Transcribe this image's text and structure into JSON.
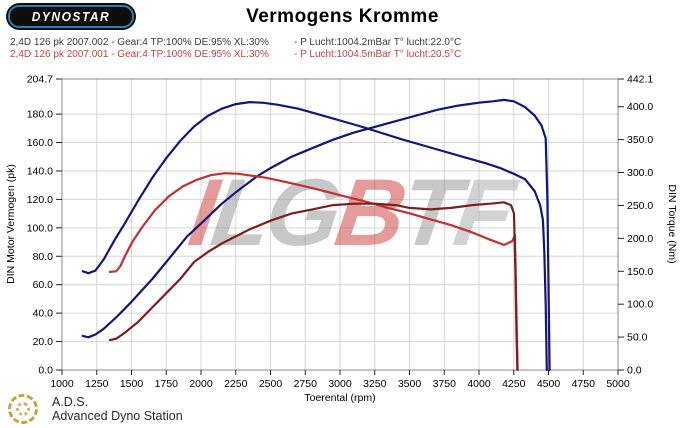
{
  "logo": {
    "text": "DYNOSTAR"
  },
  "title": "Vermogens Kromme",
  "runs": [
    {
      "main": "2,4D 126 pk 2007.002 - Gear:4 TP:100% DE:95% XL:30%",
      "env": "- P Lucht:1004.2mBar T° lucht:22.0°C",
      "color": "#3a3a44"
    },
    {
      "main": "2,4D 126 pk 2007.001 - Gear:4 TP:100% DE:95% XL:30%",
      "env": "- P Lucht:1004.5mBar T° lucht:20.5°C",
      "color": "#bf4543"
    }
  ],
  "watermark": {
    "parts": [
      {
        "text": "I",
        "color": "#d04040"
      },
      {
        "text": "L",
        "color": "#969696"
      },
      {
        "text": "G",
        "color": "#969696"
      },
      {
        "text": "B",
        "color": "#d04040"
      },
      {
        "text": "T",
        "color": "#969696"
      },
      {
        "text": "F",
        "color": "#ababab"
      }
    ]
  },
  "footer": {
    "abbr": "A.D.S.",
    "name": "Advanced Dyno Station"
  },
  "chart_data": {
    "type": "line",
    "title": "Vermogens Kromme",
    "xlabel": "Toerental (rpm)",
    "ylabel_left": "DIN Motor Vermogen (pk)",
    "ylabel_right": "DIN Torque (Nm)",
    "x_range": [
      1000,
      5000
    ],
    "y_left_range": [
      0,
      204.7
    ],
    "y_right_range": [
      0,
      442.1
    ],
    "grid": true,
    "legend": "none",
    "colors": {
      "run_002": "#14147e",
      "run_001_torque": "#c23030",
      "run_001_power": "#7d1f1f",
      "grid": "#d6d6d6",
      "frame": "#8a8a8a",
      "tick": "#222222"
    },
    "x_ticks": [
      [
        1000,
        "1000"
      ],
      [
        1250,
        "1250"
      ],
      [
        1500,
        "1500"
      ],
      [
        1750,
        "1750"
      ],
      [
        2000,
        "2000"
      ],
      [
        2250,
        "2250"
      ],
      [
        2500,
        "2500"
      ],
      [
        2750,
        "2750"
      ],
      [
        3000,
        "3000"
      ],
      [
        3250,
        "3250"
      ],
      [
        3500,
        "3500"
      ],
      [
        3750,
        "3750"
      ],
      [
        4000,
        "4000"
      ],
      [
        4250,
        "4250"
      ],
      [
        4500,
        "4500"
      ],
      [
        4750,
        "4750"
      ],
      [
        5000,
        "5000"
      ]
    ],
    "y_left_ticks": [
      [
        0,
        "0.0"
      ],
      [
        20,
        "20.0"
      ],
      [
        40,
        "40.0"
      ],
      [
        60,
        "60.0"
      ],
      [
        80,
        "80.0"
      ],
      [
        100,
        "100.0"
      ],
      [
        120,
        "120.0"
      ],
      [
        140,
        "140.0"
      ],
      [
        160,
        "160.0"
      ],
      [
        180,
        "180.0"
      ],
      [
        204.7,
        "204.7"
      ]
    ],
    "y_right_ticks": [
      [
        0,
        "0.0"
      ],
      [
        50,
        "50.0"
      ],
      [
        100,
        "100.0"
      ],
      [
        150,
        "150.0"
      ],
      [
        200,
        "200.0"
      ],
      [
        250,
        "250.0"
      ],
      [
        300,
        "300.0"
      ],
      [
        350,
        "350.0"
      ],
      [
        400,
        "400.0"
      ],
      [
        442.1,
        "442.1"
      ]
    ],
    "series": [
      {
        "name": "torque_run_2007_002",
        "axis": "right",
        "color": "#14147e",
        "unit": "Nm",
        "points": [
          [
            1150,
            150
          ],
          [
            1190,
            147
          ],
          [
            1240,
            151
          ],
          [
            1300,
            168
          ],
          [
            1380,
            198
          ],
          [
            1450,
            222
          ],
          [
            1550,
            258
          ],
          [
            1650,
            292
          ],
          [
            1750,
            322
          ],
          [
            1850,
            348
          ],
          [
            1950,
            370
          ],
          [
            2050,
            386
          ],
          [
            2150,
            397
          ],
          [
            2250,
            404
          ],
          [
            2350,
            407
          ],
          [
            2450,
            406
          ],
          [
            2550,
            403
          ],
          [
            2700,
            397
          ],
          [
            2850,
            388
          ],
          [
            3000,
            379
          ],
          [
            3150,
            370
          ],
          [
            3300,
            360
          ],
          [
            3450,
            350
          ],
          [
            3600,
            341
          ],
          [
            3750,
            332
          ],
          [
            3900,
            323
          ],
          [
            4050,
            314
          ],
          [
            4150,
            307
          ],
          [
            4250,
            298
          ],
          [
            4330,
            290
          ],
          [
            4400,
            272
          ],
          [
            4440,
            250
          ],
          [
            4460,
            228
          ],
          [
            4470,
            180
          ],
          [
            4480,
            100
          ],
          [
            4488,
            0
          ]
        ]
      },
      {
        "name": "power_run_2007_002",
        "axis": "left",
        "color": "#14147e",
        "unit": "pk",
        "points": [
          [
            1150,
            24
          ],
          [
            1190,
            23
          ],
          [
            1240,
            25
          ],
          [
            1300,
            29
          ],
          [
            1400,
            38
          ],
          [
            1500,
            48
          ],
          [
            1650,
            64
          ],
          [
            1750,
            76
          ],
          [
            1900,
            94
          ],
          [
            2000,
            103
          ],
          [
            2150,
            117
          ],
          [
            2250,
            125
          ],
          [
            2400,
            136
          ],
          [
            2500,
            142
          ],
          [
            2650,
            150
          ],
          [
            2800,
            156
          ],
          [
            2950,
            162
          ],
          [
            3100,
            167
          ],
          [
            3250,
            171
          ],
          [
            3400,
            175
          ],
          [
            3550,
            179
          ],
          [
            3700,
            183
          ],
          [
            3850,
            186
          ],
          [
            4000,
            188
          ],
          [
            4100,
            189
          ],
          [
            4180,
            190
          ],
          [
            4250,
            189
          ],
          [
            4330,
            185
          ],
          [
            4400,
            179
          ],
          [
            4450,
            172
          ],
          [
            4480,
            163
          ],
          [
            4492,
            120
          ],
          [
            4500,
            60
          ],
          [
            4508,
            0
          ]
        ]
      },
      {
        "name": "torque_run_2007_001",
        "axis": "right",
        "color": "#c23030",
        "unit": "Nm",
        "points": [
          [
            1345,
            149
          ],
          [
            1390,
            150
          ],
          [
            1420,
            158
          ],
          [
            1460,
            176
          ],
          [
            1510,
            196
          ],
          [
            1580,
            218
          ],
          [
            1670,
            243
          ],
          [
            1770,
            264
          ],
          [
            1870,
            279
          ],
          [
            1970,
            289
          ],
          [
            2070,
            296
          ],
          [
            2170,
            299
          ],
          [
            2270,
            298
          ],
          [
            2370,
            295
          ],
          [
            2470,
            292
          ],
          [
            2600,
            286
          ],
          [
            2750,
            279
          ],
          [
            2900,
            271
          ],
          [
            3050,
            263
          ],
          [
            3200,
            255
          ],
          [
            3350,
            246
          ],
          [
            3500,
            238
          ],
          [
            3650,
            229
          ],
          [
            3800,
            220
          ],
          [
            3950,
            209
          ],
          [
            4080,
            198
          ],
          [
            4180,
            190
          ],
          [
            4240,
            196
          ],
          [
            4258,
            205
          ],
          [
            4266,
            120
          ],
          [
            4272,
            60
          ],
          [
            4278,
            0
          ]
        ]
      },
      {
        "name": "power_run_2007_001",
        "axis": "left",
        "color": "#7d1f1f",
        "unit": "pk",
        "points": [
          [
            1345,
            21
          ],
          [
            1390,
            22
          ],
          [
            1450,
            26
          ],
          [
            1550,
            34
          ],
          [
            1650,
            44
          ],
          [
            1750,
            54
          ],
          [
            1850,
            64
          ],
          [
            1950,
            76
          ],
          [
            2050,
            83
          ],
          [
            2150,
            89
          ],
          [
            2250,
            94
          ],
          [
            2350,
            99
          ],
          [
            2500,
            105
          ],
          [
            2650,
            110
          ],
          [
            2800,
            113
          ],
          [
            2950,
            116
          ],
          [
            3100,
            117
          ],
          [
            3250,
            117
          ],
          [
            3400,
            116
          ],
          [
            3500,
            114
          ],
          [
            3650,
            113
          ],
          [
            3800,
            114
          ],
          [
            3950,
            116
          ],
          [
            4080,
            117
          ],
          [
            4180,
            118
          ],
          [
            4230,
            116
          ],
          [
            4252,
            110
          ],
          [
            4262,
            70
          ],
          [
            4270,
            25
          ],
          [
            4276,
            0
          ]
        ]
      }
    ]
  }
}
